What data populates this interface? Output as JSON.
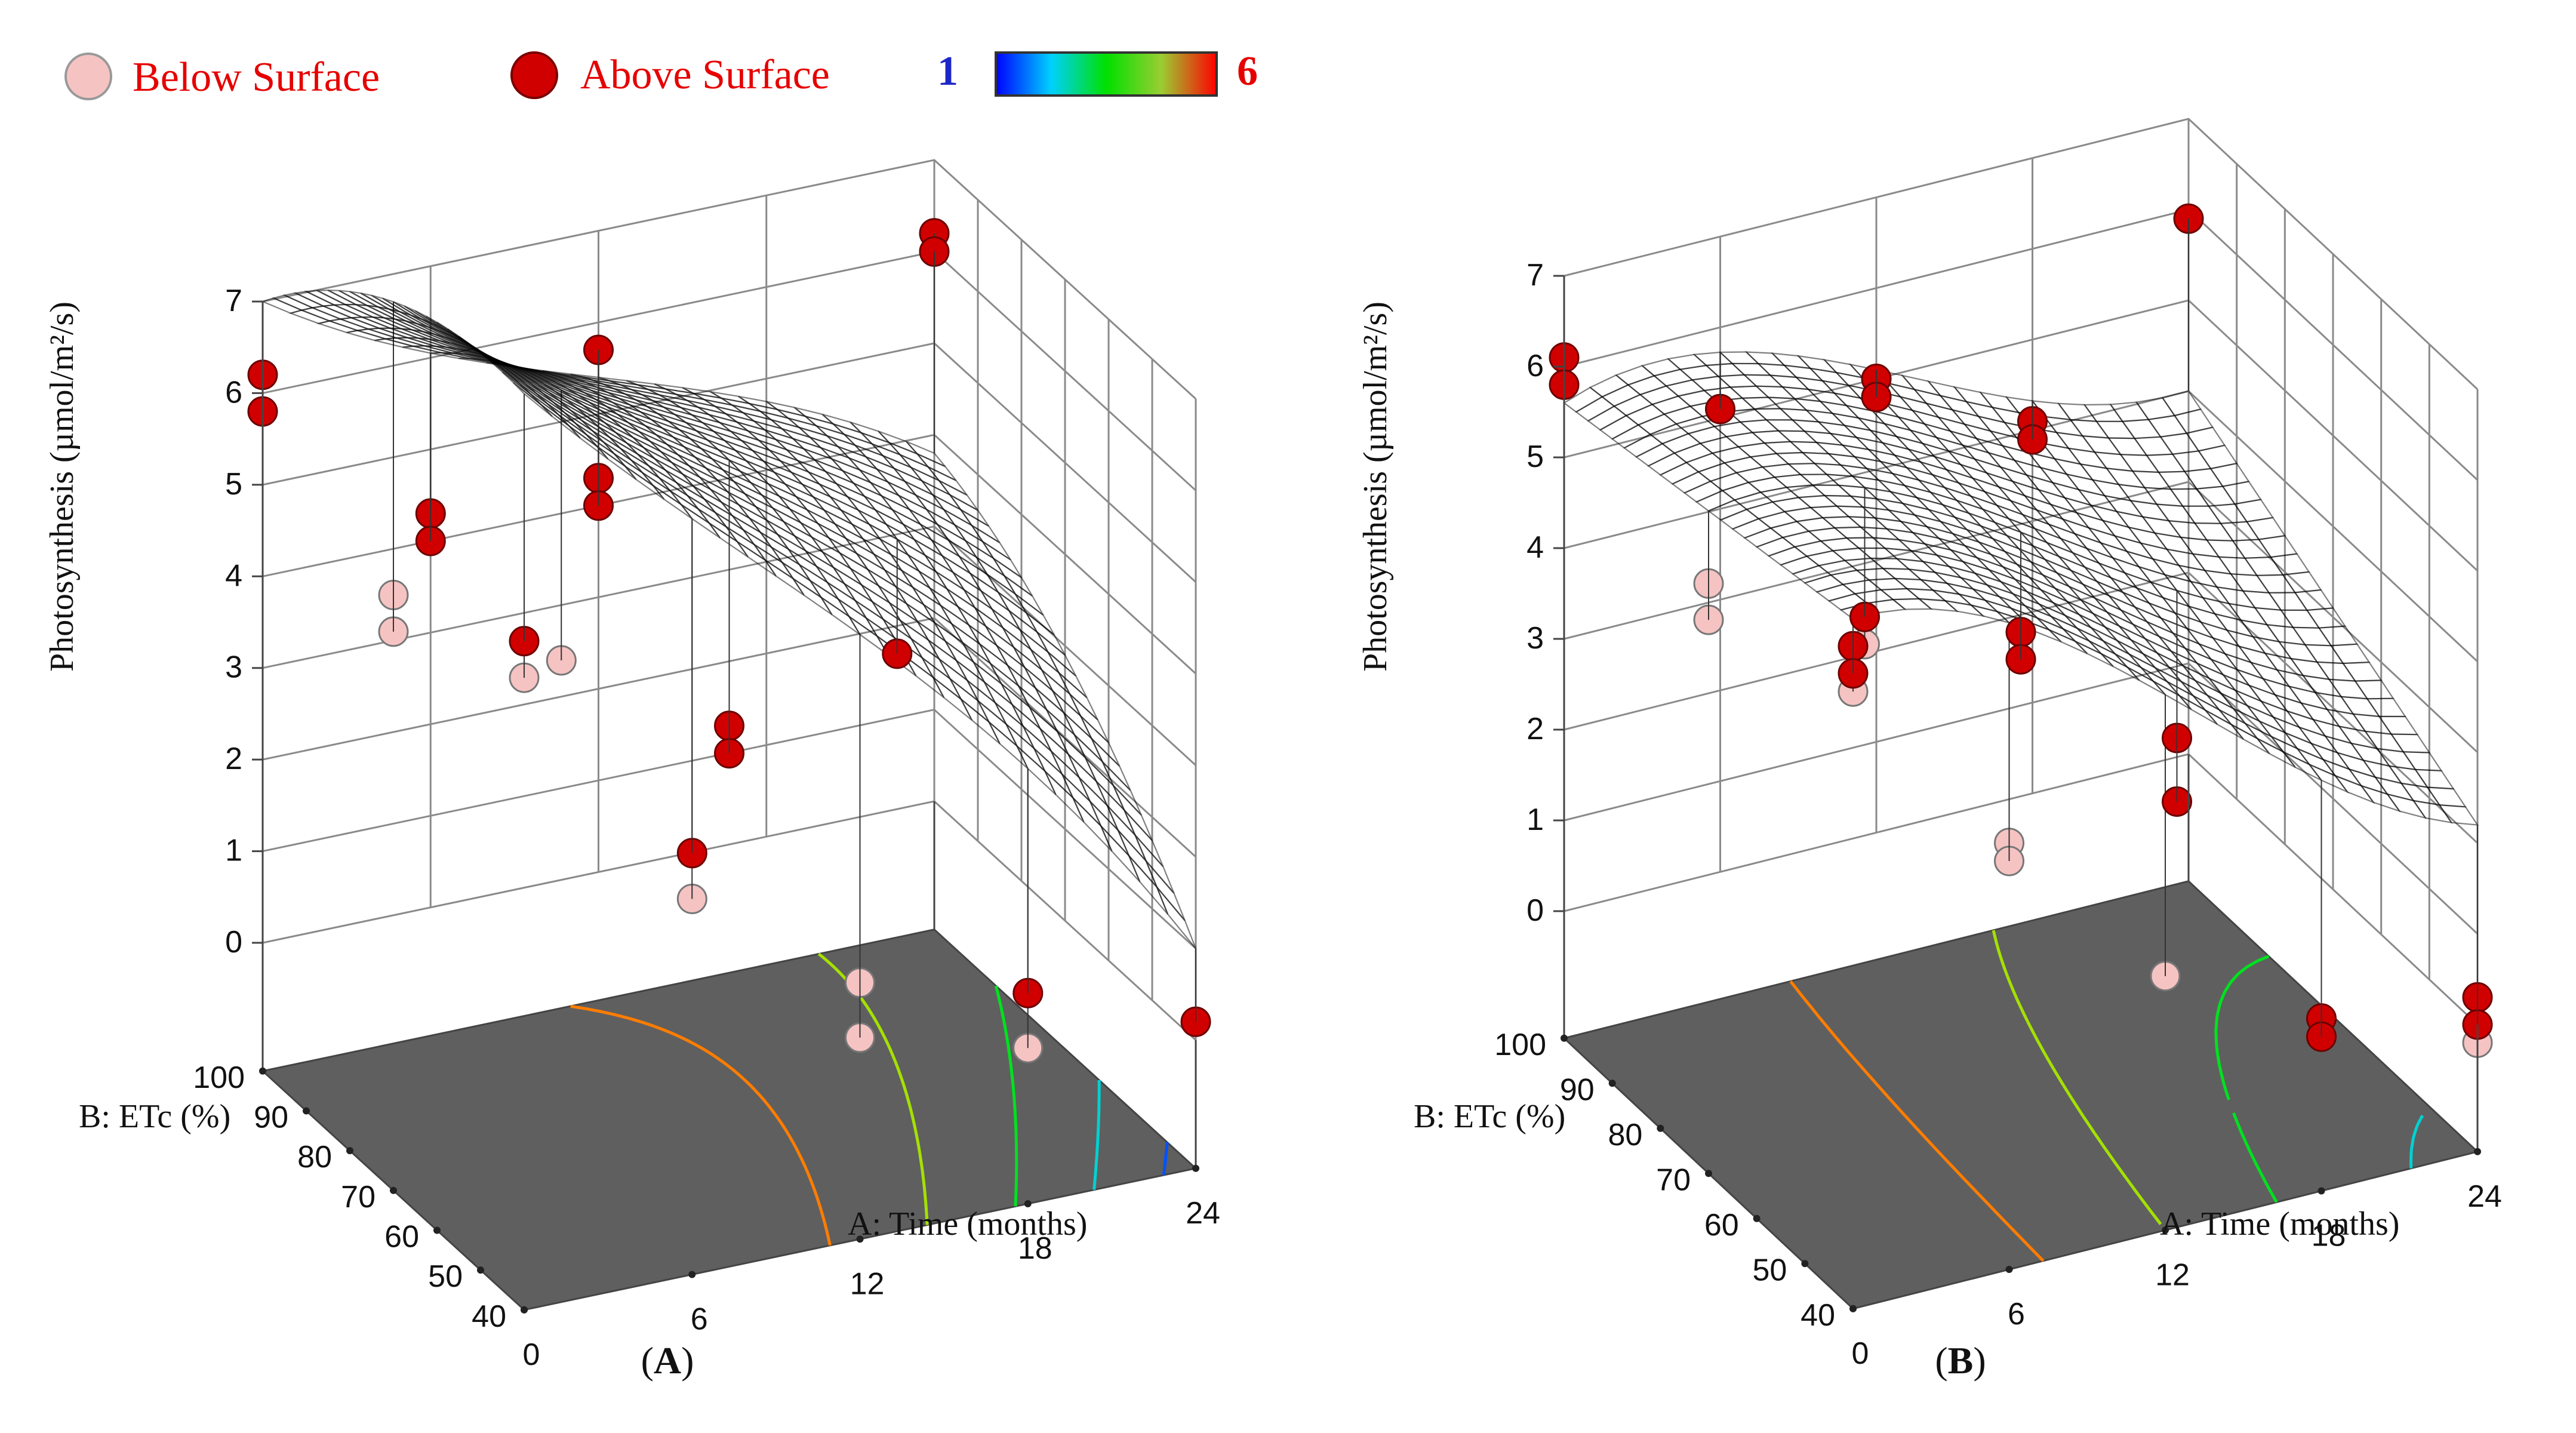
{
  "legend": {
    "below_label": "Below Surface",
    "above_label": "Above Surface",
    "scale_min": "1",
    "scale_max": "6",
    "below_color": "#f6c3c3",
    "above_color": "#d10000"
  },
  "chart_data": [
    {
      "type": "surface3d",
      "panel_label": "A",
      "zlabel": "Photosynthesis (µmol/m²/s)",
      "xlabel": "A: Time (months)",
      "ylabel": "B: ETc (%)",
      "x_ticks": [
        "0",
        "6",
        "12",
        "18",
        "24"
      ],
      "y_ticks": [
        "40",
        "50",
        "60",
        "70",
        "80",
        "90",
        "100"
      ],
      "z_ticks": [
        "0",
        "1",
        "2",
        "3",
        "4",
        "5",
        "6",
        "7"
      ],
      "xlim": [
        0,
        24
      ],
      "ylim": [
        40,
        100
      ],
      "zlim": [
        0,
        7
      ],
      "color_scale": [
        1,
        6
      ],
      "surface_coef": {
        "c": 5.8,
        "a": -2.3,
        "b": 0.1,
        "aa": -0.2,
        "ab": 1.1,
        "bb": -0.5,
        "aaa": -0.4,
        "aab": 0.2
      },
      "contour_levels": [
        1.5,
        2.5,
        3.5,
        4.5,
        5.5
      ],
      "points": [
        {
          "x": 0,
          "y": 40,
          "z": 5.9,
          "pos": "above"
        },
        {
          "x": 0,
          "y": 40,
          "z": 5.5,
          "pos": "below"
        },
        {
          "x": 6,
          "y": 40,
          "z": 3.2,
          "pos": "above"
        },
        {
          "x": 6,
          "y": 40,
          "z": 2.7,
          "pos": "below"
        },
        {
          "x": 12,
          "y": 40,
          "z": 1.4,
          "pos": "below"
        },
        {
          "x": 12,
          "y": 40,
          "z": 0.8,
          "pos": "below"
        },
        {
          "x": 18,
          "y": 40,
          "z": 0.9,
          "pos": "above"
        },
        {
          "x": 18,
          "y": 40,
          "z": 0.3,
          "pos": "below"
        },
        {
          "x": 24,
          "y": 40,
          "z": 0.2,
          "pos": "above"
        },
        {
          "x": 0,
          "y": 70,
          "z": 5.1,
          "pos": "below"
        },
        {
          "x": 0,
          "y": 70,
          "z": 4.7,
          "pos": "below"
        },
        {
          "x": 6,
          "y": 70,
          "z": 4.0,
          "pos": "below"
        },
        {
          "x": 12,
          "y": 70,
          "z": 2.9,
          "pos": "above"
        },
        {
          "x": 12,
          "y": 70,
          "z": 2.6,
          "pos": "above"
        },
        {
          "x": 18,
          "y": 70,
          "z": 3.3,
          "pos": "above"
        },
        {
          "x": 0,
          "y": 100,
          "z": 6.2,
          "pos": "above"
        },
        {
          "x": 0,
          "y": 100,
          "z": 5.8,
          "pos": "above"
        },
        {
          "x": 6,
          "y": 100,
          "z": 4.3,
          "pos": "above"
        },
        {
          "x": 6,
          "y": 100,
          "z": 4.0,
          "pos": "above"
        },
        {
          "x": 12,
          "y": 100,
          "z": 5.7,
          "pos": "above"
        },
        {
          "x": 12,
          "y": 100,
          "z": 4.3,
          "pos": "above"
        },
        {
          "x": 12,
          "y": 100,
          "z": 4.0,
          "pos": "above"
        },
        {
          "x": 24,
          "y": 100,
          "z": 6.2,
          "pos": "above"
        },
        {
          "x": 24,
          "y": 100,
          "z": 6.0,
          "pos": "above"
        }
      ]
    },
    {
      "type": "surface3d",
      "panel_label": "B",
      "zlabel": "Photosynthesis (µmol/m²/s)",
      "xlabel": "A: Time (months)",
      "ylabel": "B: ETc (%)",
      "x_ticks": [
        "0",
        "6",
        "12",
        "18",
        "24"
      ],
      "y_ticks": [
        "40",
        "50",
        "60",
        "70",
        "80",
        "90",
        "100"
      ],
      "z_ticks": [
        "0",
        "1",
        "2",
        "3",
        "4",
        "5",
        "6",
        "7"
      ],
      "xlim": [
        0,
        24
      ],
      "ylim": [
        40,
        100
      ],
      "zlim": [
        0,
        7
      ],
      "color_scale": [
        1,
        6
      ],
      "surface_coef": {
        "c": 4.8,
        "a": -2.2,
        "b": 0.3,
        "aa": -0.3,
        "ab": 0.6,
        "bb": 0.0,
        "aaa": 0.8,
        "aab": 0.0
      },
      "contour_levels": [
        1.5,
        2.5,
        3.5,
        4.5,
        5.5
      ],
      "points": [
        {
          "x": 0,
          "y": 40,
          "z": 5.9,
          "pos": "above"
        },
        {
          "x": 0,
          "y": 40,
          "z": 5.6,
          "pos": "above"
        },
        {
          "x": 0,
          "y": 40,
          "z": 5.4,
          "pos": "below"
        },
        {
          "x": 6,
          "y": 40,
          "z": 3.3,
          "pos": "below"
        },
        {
          "x": 6,
          "y": 40,
          "z": 3.1,
          "pos": "below"
        },
        {
          "x": 12,
          "y": 40,
          "z": 1.4,
          "pos": "below"
        },
        {
          "x": 18,
          "y": 40,
          "z": 0.5,
          "pos": "above"
        },
        {
          "x": 18,
          "y": 40,
          "z": 0.3,
          "pos": "above"
        },
        {
          "x": 24,
          "y": 40,
          "z": 0.3,
          "pos": "above"
        },
        {
          "x": 24,
          "y": 40,
          "z": 0.0,
          "pos": "above"
        },
        {
          "x": 24,
          "y": 40,
          "z": -0.2,
          "pos": "below"
        },
        {
          "x": 0,
          "y": 70,
          "z": 5.1,
          "pos": "below"
        },
        {
          "x": 0,
          "y": 70,
          "z": 4.7,
          "pos": "below"
        },
        {
          "x": 6,
          "y": 70,
          "z": 4.3,
          "pos": "above"
        },
        {
          "x": 6,
          "y": 70,
          "z": 4.0,
          "pos": "below"
        },
        {
          "x": 12,
          "y": 70,
          "z": 3.7,
          "pos": "above"
        },
        {
          "x": 12,
          "y": 70,
          "z": 3.4,
          "pos": "above"
        },
        {
          "x": 18,
          "y": 70,
          "z": 2.1,
          "pos": "above"
        },
        {
          "x": 18,
          "y": 70,
          "z": 1.4,
          "pos": "above"
        },
        {
          "x": 0,
          "y": 100,
          "z": 6.1,
          "pos": "above"
        },
        {
          "x": 0,
          "y": 100,
          "z": 5.8,
          "pos": "above"
        },
        {
          "x": 6,
          "y": 100,
          "z": 5.1,
          "pos": "above"
        },
        {
          "x": 12,
          "y": 100,
          "z": 5.0,
          "pos": "above"
        },
        {
          "x": 12,
          "y": 100,
          "z": 4.8,
          "pos": "above"
        },
        {
          "x": 18,
          "y": 100,
          "z": 4.1,
          "pos": "above"
        },
        {
          "x": 18,
          "y": 100,
          "z": 3.9,
          "pos": "above"
        },
        {
          "x": 24,
          "y": 100,
          "z": 5.9,
          "pos": "above"
        }
      ]
    }
  ]
}
